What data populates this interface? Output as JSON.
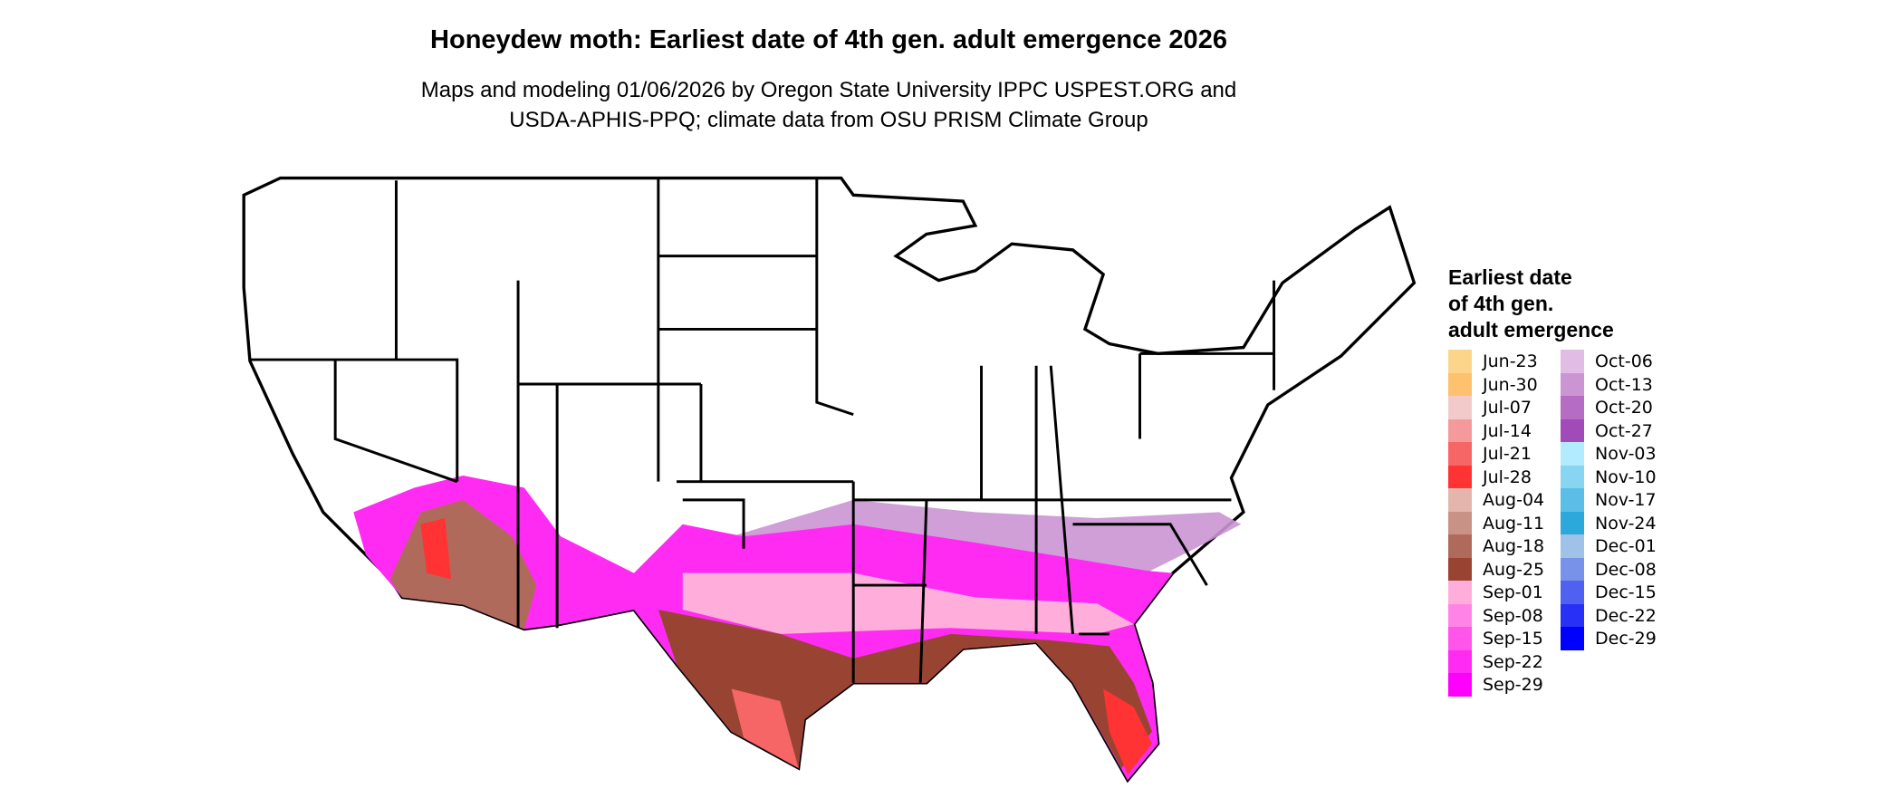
{
  "title": "Honeydew moth: Earliest date of 4th gen. adult emergence 2026",
  "subtitle_line1": "Maps and modeling 01/06/2026 by Oregon State University IPPC USPEST.ORG and",
  "subtitle_line2": "USDA-APHIS-PPQ; climate data from OSU PRISM Climate Group",
  "chart_data": {
    "type": "heatmap",
    "title": "Honeydew moth: Earliest date of 4th gen. adult emergence 2026",
    "region": "Contiguous United States",
    "legend": {
      "title_lines": [
        "Earliest date",
        "of 4th gen.",
        "adult emergence"
      ],
      "placement": "right",
      "entries": [
        {
          "label": "Jun-23",
          "color": "#FDD58A"
        },
        {
          "label": "Jun-30",
          "color": "#FEC26E"
        },
        {
          "label": "Jul-07",
          "color": "#F2CACA"
        },
        {
          "label": "Jul-14",
          "color": "#F49A9A"
        },
        {
          "label": "Jul-21",
          "color": "#F66666"
        },
        {
          "label": "Jul-28",
          "color": "#FF3333"
        },
        {
          "label": "Aug-04",
          "color": "#E4B5AC"
        },
        {
          "label": "Aug-11",
          "color": "#C99286"
        },
        {
          "label": "Aug-18",
          "color": "#B06A5C"
        },
        {
          "label": "Aug-25",
          "color": "#994433"
        },
        {
          "label": "Sep-01",
          "color": "#FFAEDC"
        },
        {
          "label": "Sep-08",
          "color": "#FF84E5"
        },
        {
          "label": "Sep-15",
          "color": "#FF55EA"
        },
        {
          "label": "Sep-22",
          "color": "#FF2BF2"
        },
        {
          "label": "Sep-29",
          "color": "#FF00FF"
        },
        {
          "label": "Oct-06",
          "color": "#E1BDE6"
        },
        {
          "label": "Oct-13",
          "color": "#CB95D4"
        },
        {
          "label": "Oct-20",
          "color": "#B56DC4"
        },
        {
          "label": "Oct-27",
          "color": "#A04BB8"
        },
        {
          "label": "Nov-03",
          "color": "#B2EBFE"
        },
        {
          "label": "Nov-10",
          "color": "#88D5F2"
        },
        {
          "label": "Nov-17",
          "color": "#5BBEE6"
        },
        {
          "label": "Nov-24",
          "color": "#2DA8DB"
        },
        {
          "label": "Dec-01",
          "color": "#A0C2E8"
        },
        {
          "label": "Dec-08",
          "color": "#7892EA"
        },
        {
          "label": "Dec-15",
          "color": "#5060F0"
        },
        {
          "label": "Dec-22",
          "color": "#2830F6"
        },
        {
          "label": "Dec-29",
          "color": "#0000FF"
        }
      ]
    }
  }
}
